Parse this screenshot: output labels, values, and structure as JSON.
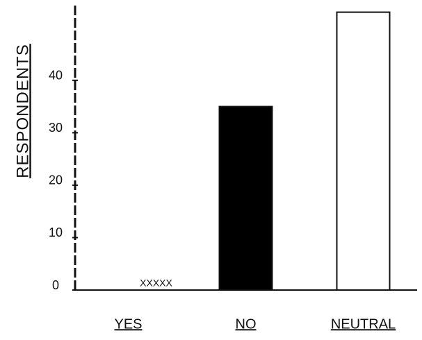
{
  "chart_data": {
    "type": "bar",
    "y_label": "RESPONDENTS",
    "categories": [
      "YES",
      "NO",
      "NEUTRAL"
    ],
    "values": [
      0,
      35,
      53
    ],
    "colors": [
      "#ffffff",
      "#000000",
      "#ffffff"
    ],
    "annotation": "XXXXX",
    "ylim": [
      0,
      54
    ],
    "yticks": [
      0,
      10,
      20,
      30,
      40
    ]
  }
}
